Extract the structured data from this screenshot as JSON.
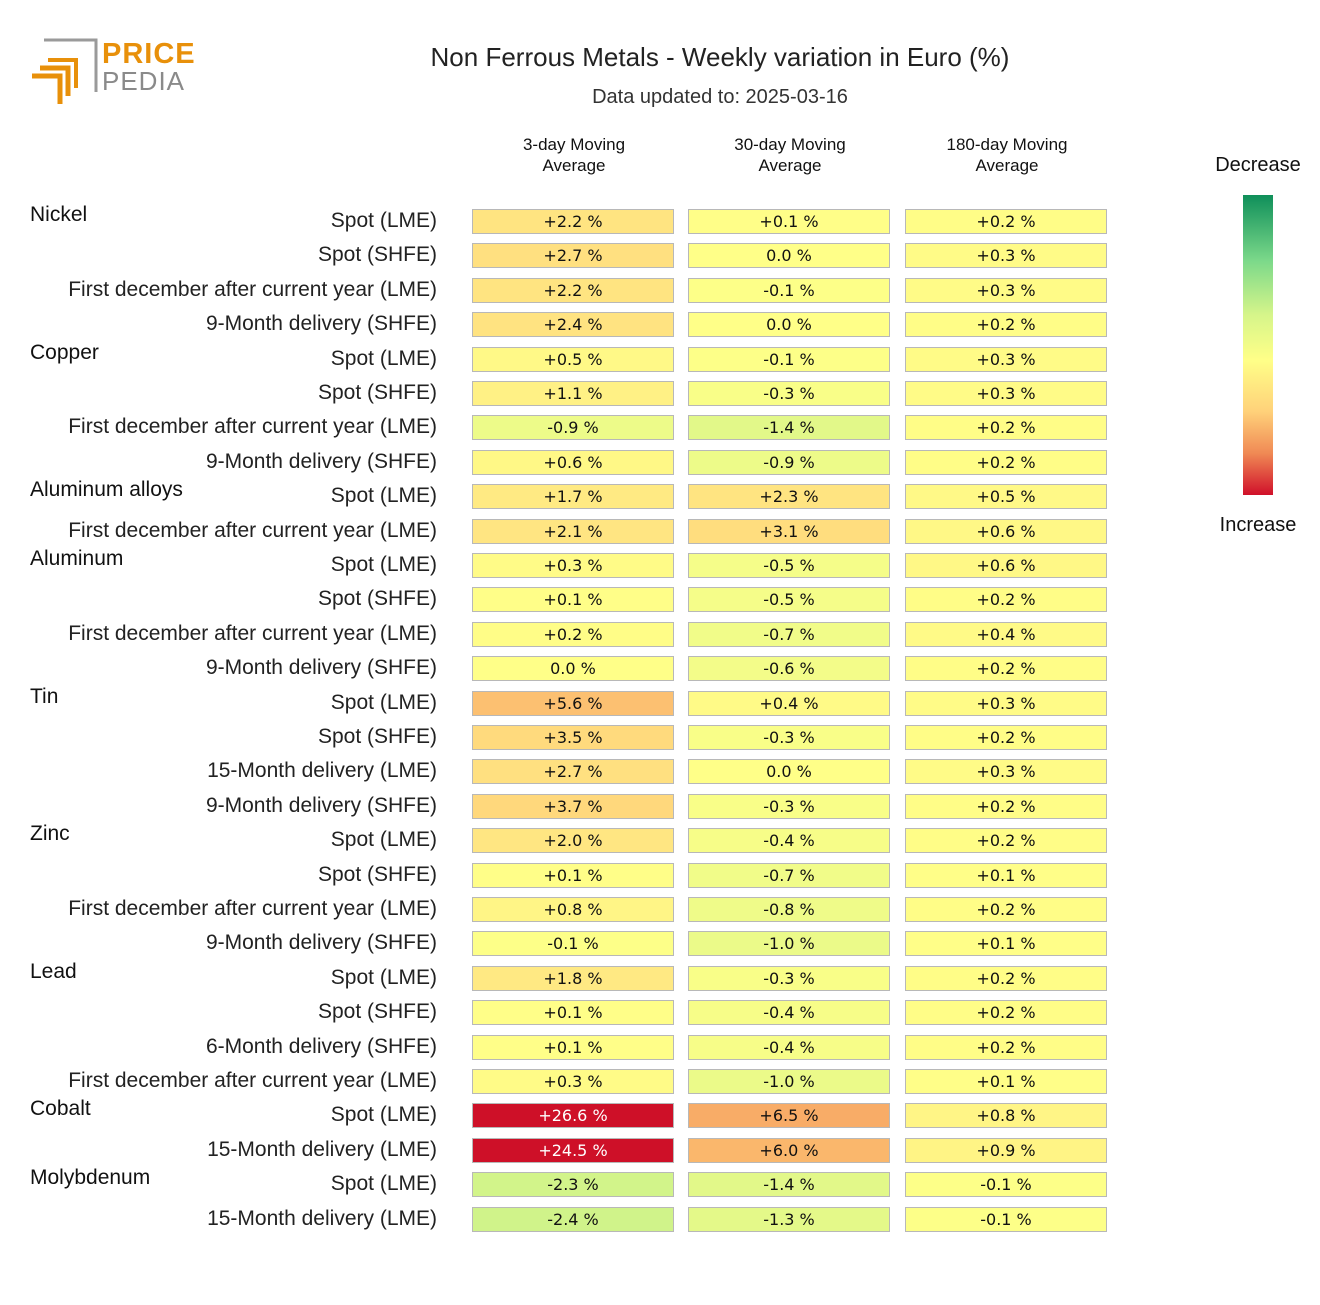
{
  "header": {
    "title": "Non Ferrous Metals - Weekly variation in Euro (%)",
    "subtitle": "Data updated to: 2025-03-16"
  },
  "logo": {
    "line1": "PRICE",
    "line2": "PEDIA",
    "accent": "#e8900a",
    "gray": "#9a9a9a"
  },
  "legend": {
    "top": "Decrease",
    "bottom": "Increase"
  },
  "chart_data": {
    "type": "heatmap",
    "title": "Non Ferrous Metals - Weekly variation in Euro (%)",
    "columns": [
      "3-day Moving\nAverage",
      "30-day Moving\nAverage",
      "180-day Moving\nAverage"
    ],
    "unit": "%",
    "rows": [
      {
        "group": "Nickel",
        "label": "Spot (LME)",
        "values": [
          2.2,
          0.1,
          0.2
        ],
        "text": [
          "+2.2 %",
          "+0.1 %",
          "+0.2 %"
        ]
      },
      {
        "group": "",
        "label": "Spot (SHFE)",
        "values": [
          2.7,
          0.0,
          0.3
        ],
        "text": [
          "+2.7 %",
          "0.0 %",
          "+0.3 %"
        ]
      },
      {
        "group": "",
        "label": "First december after current year (LME)",
        "values": [
          2.2,
          -0.1,
          0.3
        ],
        "text": [
          "+2.2 %",
          "-0.1 %",
          "+0.3 %"
        ]
      },
      {
        "group": "",
        "label": "9-Month delivery (SHFE)",
        "values": [
          2.4,
          0.0,
          0.2
        ],
        "text": [
          "+2.4 %",
          "0.0 %",
          "+0.2 %"
        ]
      },
      {
        "group": "Copper",
        "label": "Spot (LME)",
        "values": [
          0.5,
          -0.1,
          0.3
        ],
        "text": [
          "+0.5 %",
          "-0.1 %",
          "+0.3 %"
        ]
      },
      {
        "group": "",
        "label": "Spot (SHFE)",
        "values": [
          1.1,
          -0.3,
          0.3
        ],
        "text": [
          "+1.1 %",
          "-0.3 %",
          "+0.3 %"
        ]
      },
      {
        "group": "",
        "label": "First december after current year (LME)",
        "values": [
          -0.9,
          -1.4,
          0.2
        ],
        "text": [
          "-0.9 %",
          "-1.4 %",
          "+0.2 %"
        ]
      },
      {
        "group": "",
        "label": "9-Month delivery (SHFE)",
        "values": [
          0.6,
          -0.9,
          0.2
        ],
        "text": [
          "+0.6 %",
          "-0.9 %",
          "+0.2 %"
        ]
      },
      {
        "group": "Aluminum alloys",
        "label": "Spot (LME)",
        "values": [
          1.7,
          2.3,
          0.5
        ],
        "text": [
          "+1.7 %",
          "+2.3 %",
          "+0.5 %"
        ]
      },
      {
        "group": "",
        "label": "First december after current year (LME)",
        "values": [
          2.1,
          3.1,
          0.6
        ],
        "text": [
          "+2.1 %",
          "+3.1 %",
          "+0.6 %"
        ]
      },
      {
        "group": "Aluminum",
        "label": "Spot (LME)",
        "values": [
          0.3,
          -0.5,
          0.6
        ],
        "text": [
          "+0.3 %",
          "-0.5 %",
          "+0.6 %"
        ]
      },
      {
        "group": "",
        "label": "Spot (SHFE)",
        "values": [
          0.1,
          -0.5,
          0.2
        ],
        "text": [
          "+0.1 %",
          "-0.5 %",
          "+0.2 %"
        ]
      },
      {
        "group": "",
        "label": "First december after current year (LME)",
        "values": [
          0.2,
          -0.7,
          0.4
        ],
        "text": [
          "+0.2 %",
          "-0.7 %",
          "+0.4 %"
        ]
      },
      {
        "group": "",
        "label": "9-Month delivery (SHFE)",
        "values": [
          0.0,
          -0.6,
          0.2
        ],
        "text": [
          "0.0 %",
          "-0.6 %",
          "+0.2 %"
        ]
      },
      {
        "group": "Tin",
        "label": "Spot (LME)",
        "values": [
          5.6,
          0.4,
          0.3
        ],
        "text": [
          "+5.6 %",
          "+0.4 %",
          "+0.3 %"
        ]
      },
      {
        "group": "",
        "label": "Spot (SHFE)",
        "values": [
          3.5,
          -0.3,
          0.2
        ],
        "text": [
          "+3.5 %",
          "-0.3 %",
          "+0.2 %"
        ]
      },
      {
        "group": "",
        "label": "15-Month delivery (LME)",
        "values": [
          2.7,
          0.0,
          0.3
        ],
        "text": [
          "+2.7 %",
          "0.0 %",
          "+0.3 %"
        ]
      },
      {
        "group": "",
        "label": "9-Month delivery (SHFE)",
        "values": [
          3.7,
          -0.3,
          0.2
        ],
        "text": [
          "+3.7 %",
          "-0.3 %",
          "+0.2 %"
        ]
      },
      {
        "group": "Zinc",
        "label": "Spot (LME)",
        "values": [
          2.0,
          -0.4,
          0.2
        ],
        "text": [
          "+2.0 %",
          "-0.4 %",
          "+0.2 %"
        ]
      },
      {
        "group": "",
        "label": "Spot (SHFE)",
        "values": [
          0.1,
          -0.7,
          0.1
        ],
        "text": [
          "+0.1 %",
          "-0.7 %",
          "+0.1 %"
        ]
      },
      {
        "group": "",
        "label": "First december after current year (LME)",
        "values": [
          0.8,
          -0.8,
          0.2
        ],
        "text": [
          "+0.8 %",
          "-0.8 %",
          "+0.2 %"
        ]
      },
      {
        "group": "",
        "label": "9-Month delivery (SHFE)",
        "values": [
          -0.1,
          -1.0,
          0.1
        ],
        "text": [
          "-0.1 %",
          "-1.0 %",
          "+0.1 %"
        ]
      },
      {
        "group": "Lead",
        "label": "Spot (LME)",
        "values": [
          1.8,
          -0.3,
          0.2
        ],
        "text": [
          "+1.8 %",
          "-0.3 %",
          "+0.2 %"
        ]
      },
      {
        "group": "",
        "label": "Spot (SHFE)",
        "values": [
          0.1,
          -0.4,
          0.2
        ],
        "text": [
          "+0.1 %",
          "-0.4 %",
          "+0.2 %"
        ]
      },
      {
        "group": "",
        "label": "6-Month delivery (SHFE)",
        "values": [
          0.1,
          -0.4,
          0.2
        ],
        "text": [
          "+0.1 %",
          "-0.4 %",
          "+0.2 %"
        ]
      },
      {
        "group": "",
        "label": "First december after current year (LME)",
        "values": [
          0.3,
          -1.0,
          0.1
        ],
        "text": [
          "+0.3 %",
          "-1.0 %",
          "+0.1 %"
        ]
      },
      {
        "group": "Cobalt",
        "label": "Spot (LME)",
        "values": [
          26.6,
          6.5,
          0.8
        ],
        "text": [
          "+26.6 %",
          "+6.5 %",
          "+0.8 %"
        ]
      },
      {
        "group": "",
        "label": "15-Month delivery (LME)",
        "values": [
          24.5,
          6.0,
          0.9
        ],
        "text": [
          "+24.5 %",
          "+6.0 %",
          "+0.9 %"
        ]
      },
      {
        "group": "Molybdenum",
        "label": "Spot (LME)",
        "values": [
          -2.3,
          -1.4,
          -0.1
        ],
        "text": [
          "-2.3 %",
          "-1.4 %",
          "-0.1 %"
        ]
      },
      {
        "group": "",
        "label": "15-Month delivery (LME)",
        "values": [
          -2.4,
          -1.3,
          -0.1
        ],
        "text": [
          "-2.4 %",
          "-1.3 %",
          "-0.1 %"
        ]
      }
    ],
    "color_scale": {
      "decrease": "#0f8f5a",
      "neutral": "#ffff88",
      "increase": "#d0102a"
    }
  }
}
